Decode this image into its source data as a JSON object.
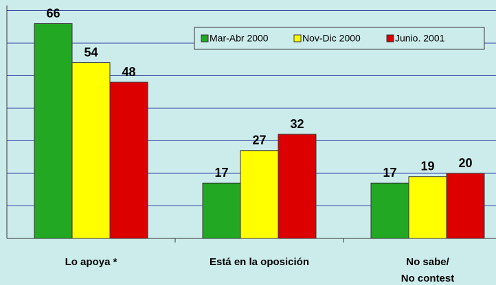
{
  "chart_data": {
    "type": "bar",
    "categories": [
      [
        "Lo apoya *"
      ],
      [
        "Está en la oposición"
      ],
      [
        "No sabe/",
        "No contest"
      ]
    ],
    "series": [
      {
        "name": "Mar-Abr 2000",
        "color": "#22a822",
        "values": [
          66,
          17,
          17
        ]
      },
      {
        "name": "Nov-Dic 2000",
        "color": "#ffff00",
        "values": [
          54,
          27,
          19
        ]
      },
      {
        "name": "Junio. 2001",
        "color": "#dd0000",
        "values": [
          48,
          32,
          20
        ]
      }
    ],
    "ylim": [
      0,
      70
    ],
    "yticks": [
      0,
      10,
      20,
      30,
      40,
      50,
      60,
      70
    ],
    "grid": true,
    "legend": "top-right"
  }
}
